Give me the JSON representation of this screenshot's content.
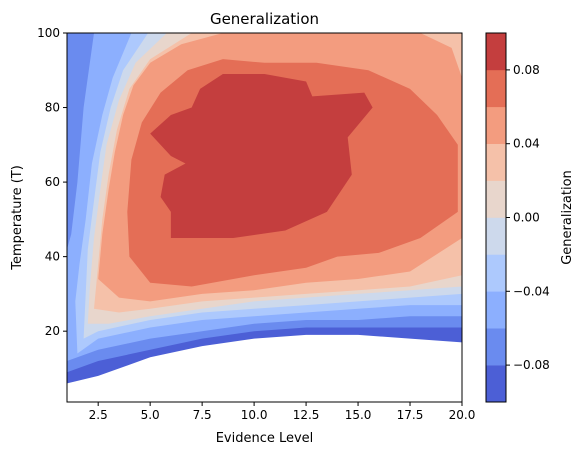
{
  "chart_data": {
    "type": "contourf",
    "title": "Generalization",
    "xlabel": "Evidence Level",
    "ylabel": "Temperature (T)",
    "xlim": [
      1,
      20
    ],
    "ylim": [
      1,
      100
    ],
    "x_ticks": [
      2.5,
      5.0,
      7.5,
      10.0,
      12.5,
      15.0,
      17.5,
      20.0
    ],
    "x_tick_labels": [
      "2.5",
      "5.0",
      "7.5",
      "10.0",
      "12.5",
      "15.0",
      "17.5",
      "20.0"
    ],
    "y_ticks": [
      20,
      40,
      60,
      80,
      100
    ],
    "y_tick_labels": [
      "20",
      "40",
      "60",
      "80",
      "100"
    ],
    "colorbar": {
      "label": "Generalization",
      "levels": [
        -0.1,
        -0.08,
        -0.06,
        -0.04,
        -0.02,
        0.0,
        0.02,
        0.04,
        0.06,
        0.08,
        0.1
      ],
      "colors": [
        "#4c5fd6",
        "#6a8bef",
        "#8caffe",
        "#adc9fd",
        "#cdd9ec",
        "#e8d6cc",
        "#f5c1a9",
        "#f39c7f",
        "#e46e56",
        "#c43e3e"
      ],
      "ticks": [
        -0.08,
        -0.04,
        0.0,
        0.04,
        0.08
      ],
      "tick_labels": [
        "−0.08",
        "−0.04",
        "0.00",
        "0.04",
        "0.08"
      ]
    },
    "regions": [
      {
        "level": 1,
        "points": [
          [
            1,
            6
          ],
          [
            2.5,
            8
          ],
          [
            5,
            13
          ],
          [
            7.5,
            16
          ],
          [
            10,
            18
          ],
          [
            12.5,
            19
          ],
          [
            15,
            19
          ],
          [
            17.5,
            18
          ],
          [
            20,
            17
          ],
          [
            20,
            100
          ],
          [
            1,
            100
          ]
        ]
      },
      {
        "level": 2,
        "points": [
          [
            1,
            9
          ],
          [
            2.5,
            12
          ],
          [
            5,
            15
          ],
          [
            7.5,
            18
          ],
          [
            10,
            20
          ],
          [
            12.5,
            21
          ],
          [
            15,
            21
          ],
          [
            17.5,
            21
          ],
          [
            20,
            21
          ],
          [
            20,
            100
          ],
          [
            1,
            100
          ]
        ]
      },
      {
        "level": 3,
        "points": [
          [
            1,
            12
          ],
          [
            2.5,
            15
          ],
          [
            5,
            18
          ],
          [
            7.5,
            20
          ],
          [
            10,
            22
          ],
          [
            12.5,
            23
          ],
          [
            15,
            23
          ],
          [
            17.5,
            24
          ],
          [
            20,
            24
          ],
          [
            20,
            100
          ],
          [
            3.6,
            100
          ],
          [
            3.1,
            100
          ],
          [
            2.8,
            100
          ],
          [
            2.3,
            100
          ],
          [
            1.8,
            80
          ],
          [
            1.5,
            60
          ],
          [
            1.2,
            46
          ],
          [
            1,
            42
          ]
        ]
      },
      {
        "level": 4,
        "points": [
          [
            1.5,
            14
          ],
          [
            2.5,
            18
          ],
          [
            5,
            21
          ],
          [
            7.5,
            23
          ],
          [
            10,
            24
          ],
          [
            12.5,
            25
          ],
          [
            15,
            26
          ],
          [
            17.5,
            27
          ],
          [
            20,
            27
          ],
          [
            20,
            100
          ],
          [
            4.1,
            100
          ],
          [
            3.2,
            88
          ],
          [
            2.7,
            78
          ],
          [
            2.2,
            65
          ],
          [
            1.9,
            50
          ],
          [
            1.6,
            38
          ],
          [
            1.4,
            28
          ]
        ]
      },
      {
        "level": 5,
        "points": [
          [
            1.8,
            18
          ],
          [
            2.5,
            20
          ],
          [
            5,
            23
          ],
          [
            7.5,
            25
          ],
          [
            10,
            26
          ],
          [
            12.5,
            27
          ],
          [
            15,
            28
          ],
          [
            17.5,
            29
          ],
          [
            20,
            30
          ],
          [
            20,
            100
          ],
          [
            4.9,
            100
          ],
          [
            3.7,
            90
          ],
          [
            3.1,
            80
          ],
          [
            2.6,
            68
          ],
          [
            2.3,
            55
          ],
          [
            2.0,
            42
          ],
          [
            1.9,
            30
          ]
        ]
      },
      {
        "level": 6,
        "points": [
          [
            2.0,
            22
          ],
          [
            3,
            22
          ],
          [
            5,
            24
          ],
          [
            7.5,
            26
          ],
          [
            10,
            28
          ],
          [
            12.5,
            29
          ],
          [
            15,
            30
          ],
          [
            17.5,
            31
          ],
          [
            20,
            32
          ],
          [
            20,
            100
          ],
          [
            5.8,
            100
          ],
          [
            4.3,
            92
          ],
          [
            3.5,
            82
          ],
          [
            2.9,
            70
          ],
          [
            2.6,
            58
          ],
          [
            2.3,
            45
          ],
          [
            2.1,
            32
          ]
        ]
      },
      {
        "level": 7,
        "points": [
          [
            2.3,
            26
          ],
          [
            3.5,
            25
          ],
          [
            5,
            26
          ],
          [
            7.5,
            28
          ],
          [
            10,
            29
          ],
          [
            12.5,
            30
          ],
          [
            15,
            31
          ],
          [
            17.5,
            32
          ],
          [
            20,
            35
          ],
          [
            20,
            100
          ],
          [
            7,
            100
          ],
          [
            5,
            93
          ],
          [
            4,
            85
          ],
          [
            3.4,
            74
          ],
          [
            3.0,
            62
          ],
          [
            2.7,
            50
          ],
          [
            2.5,
            38
          ]
        ]
      },
      {
        "level": 8,
        "points": [
          [
            2.5,
            34
          ],
          [
            3.5,
            29
          ],
          [
            5,
            28
          ],
          [
            7.5,
            30
          ],
          [
            10,
            31
          ],
          [
            12.5,
            33
          ],
          [
            15,
            34
          ],
          [
            17.5,
            36
          ],
          [
            20,
            45
          ],
          [
            20,
            88
          ],
          [
            19.5,
            96
          ],
          [
            18,
            100
          ],
          [
            8.5,
            100
          ],
          [
            6.5,
            97
          ],
          [
            5,
            92
          ],
          [
            4.2,
            86
          ],
          [
            3.7,
            78
          ],
          [
            3.3,
            68
          ],
          [
            3.0,
            58
          ],
          [
            2.7,
            46
          ]
        ]
      },
      {
        "level": 9,
        "points": [
          [
            4,
            40
          ],
          [
            5,
            33
          ],
          [
            7,
            32
          ],
          [
            10,
            35
          ],
          [
            12.5,
            37
          ],
          [
            14,
            40
          ],
          [
            16,
            41
          ],
          [
            18,
            45
          ],
          [
            19.8,
            52
          ],
          [
            19.8,
            70
          ],
          [
            18.8,
            78
          ],
          [
            17.5,
            85
          ],
          [
            15.5,
            90
          ],
          [
            13,
            92
          ],
          [
            10.5,
            92
          ],
          [
            8.5,
            93
          ],
          [
            6.8,
            90
          ],
          [
            5.5,
            84
          ],
          [
            4.6,
            76
          ],
          [
            4.1,
            66
          ],
          [
            3.9,
            52
          ]
        ]
      },
      {
        "level": 10,
        "points": [
          [
            6,
            45
          ],
          [
            9,
            45
          ],
          [
            11.5,
            47
          ],
          [
            13.5,
            52
          ],
          [
            14.7,
            62
          ],
          [
            14.5,
            72
          ],
          [
            15.7,
            80
          ],
          [
            15.3,
            84
          ],
          [
            12.8,
            83
          ],
          [
            12.5,
            87
          ],
          [
            10.5,
            89
          ],
          [
            8.5,
            89
          ],
          [
            7.4,
            85
          ],
          [
            7,
            80
          ],
          [
            6,
            78
          ],
          [
            5,
            73
          ],
          [
            6,
            67
          ],
          [
            6.7,
            65
          ],
          [
            5.7,
            62
          ],
          [
            5.5,
            56
          ],
          [
            6,
            52
          ]
        ]
      }
    ]
  }
}
